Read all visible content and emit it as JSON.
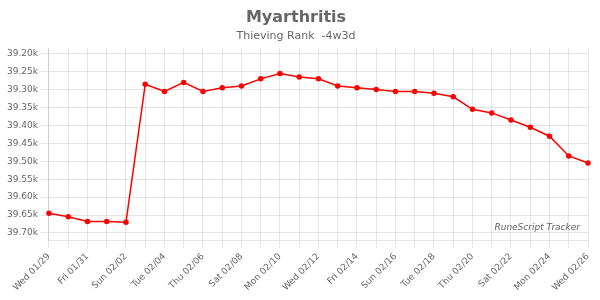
{
  "chart_data": {
    "type": "line",
    "title": "Myarthritis",
    "subtitle": "Thieving Rank  -4w3d",
    "annotations": [
      "RuneScript Tracker"
    ],
    "categories": [
      "Wed 01/29",
      null,
      "Fri 01/31",
      null,
      "Sun 02/02",
      null,
      "Tue 02/04",
      null,
      "Thu 02/06",
      null,
      "Sat 02/08",
      null,
      "Mon 02/10",
      null,
      "Wed 02/12",
      null,
      "Fri 02/14",
      null,
      "Sun 02/16",
      null,
      "Tue 02/18",
      null,
      "Thu 02/20",
      null,
      "Sat 02/22",
      null,
      "Mon 02/24",
      null,
      "Wed 02/26"
    ],
    "values": [
      39645,
      39655,
      39668,
      39668,
      39670,
      39285,
      39305,
      39280,
      39305,
      39295,
      39290,
      39270,
      39255,
      39265,
      39270,
      39290,
      39295,
      39300,
      39305,
      39305,
      39310,
      39320,
      39355,
      39365,
      39385,
      39405,
      39430,
      39485,
      39505
    ],
    "color": "#ff0000",
    "marker": "circle",
    "ylim": [
      39720,
      39185
    ],
    "yticks": [
      {
        "value": 39200,
        "label": "39.20k"
      },
      {
        "value": 39250,
        "label": "39.25k"
      },
      {
        "value": 39300,
        "label": "39.30k"
      },
      {
        "value": 39350,
        "label": "39.35k"
      },
      {
        "value": 39400,
        "label": "39.40k"
      },
      {
        "value": 39450,
        "label": "39.45k"
      },
      {
        "value": 39500,
        "label": "39.50k"
      },
      {
        "value": 39550,
        "label": "39.55k"
      },
      {
        "value": 39600,
        "label": "39.60k"
      },
      {
        "value": 39650,
        "label": "39.65k"
      },
      {
        "value": 39700,
        "label": "39.70k"
      }
    ],
    "grid": true
  }
}
